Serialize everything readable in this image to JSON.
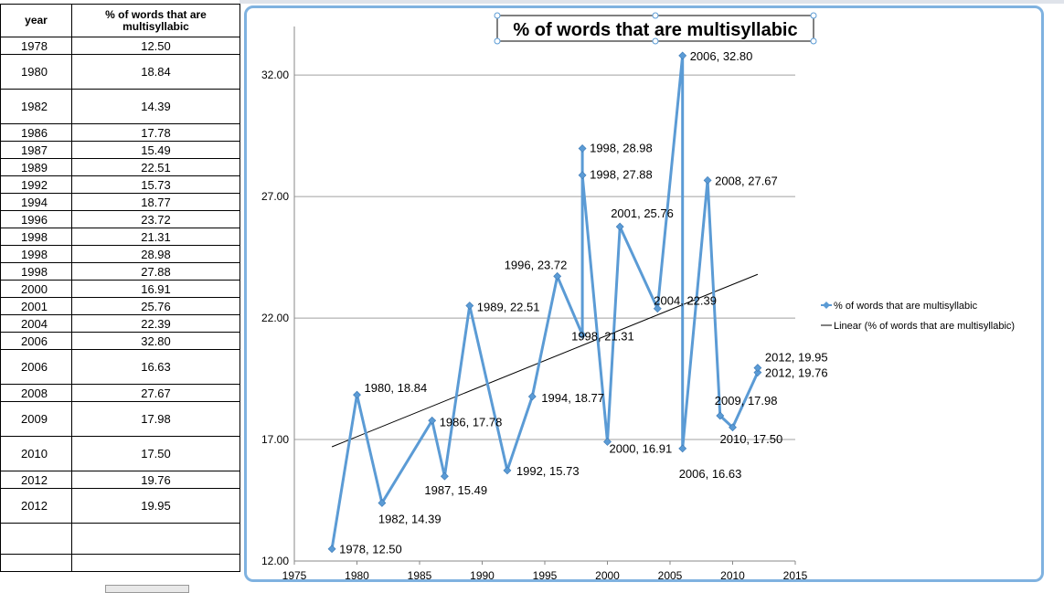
{
  "table": {
    "headers": [
      "year",
      "% of words that are multisyllabic"
    ],
    "rows": [
      [
        "1978",
        "12.50"
      ],
      [
        "1980",
        "18.84"
      ],
      [
        "1982",
        "14.39"
      ],
      [
        "1986",
        "17.78"
      ],
      [
        "1987",
        "15.49"
      ],
      [
        "1989",
        "22.51"
      ],
      [
        "1992",
        "15.73"
      ],
      [
        "1994",
        "18.77"
      ],
      [
        "1996",
        "23.72"
      ],
      [
        "1998",
        "21.31"
      ],
      [
        "1998",
        "28.98"
      ],
      [
        "1998",
        "27.88"
      ],
      [
        "2000",
        "16.91"
      ],
      [
        "2001",
        "25.76"
      ],
      [
        "2004",
        "22.39"
      ],
      [
        "2006",
        "32.80"
      ],
      [
        "2006",
        "16.63"
      ],
      [
        "2008",
        "27.67"
      ],
      [
        "2009",
        "17.98"
      ],
      [
        "2010",
        "17.50"
      ],
      [
        "2012",
        "19.76"
      ],
      [
        "2012",
        "19.95"
      ]
    ]
  },
  "chart_data": {
    "type": "line",
    "title": "% of words that are multisyllabic",
    "xlabel": "",
    "ylabel": "",
    "xlim": [
      1975,
      2015
    ],
    "ylim": [
      12,
      34
    ],
    "x_ticks": [
      "1975",
      "1980",
      "1985",
      "1990",
      "1995",
      "2000",
      "2005",
      "2010",
      "2015"
    ],
    "y_ticks": [
      "12.00",
      "17.00",
      "22.00",
      "27.00",
      "32.00"
    ],
    "grid": "horizontal",
    "legend_position": "right",
    "series": [
      {
        "name": "% of words that are multisyllabic",
        "color": "#5b9bd5",
        "points": [
          [
            1978,
            12.5
          ],
          [
            1980,
            18.84
          ],
          [
            1982,
            14.39
          ],
          [
            1986,
            17.78
          ],
          [
            1987,
            15.49
          ],
          [
            1989,
            22.51
          ],
          [
            1992,
            15.73
          ],
          [
            1994,
            18.77
          ],
          [
            1996,
            23.72
          ],
          [
            1998,
            21.31
          ],
          [
            1998,
            28.98
          ],
          [
            1998,
            27.88
          ],
          [
            2000,
            16.91
          ],
          [
            2001,
            25.76
          ],
          [
            2004,
            22.39
          ],
          [
            2006,
            32.8
          ],
          [
            2006,
            16.63
          ],
          [
            2008,
            27.67
          ],
          [
            2009,
            17.98
          ],
          [
            2010,
            17.5
          ],
          [
            2012,
            19.76
          ],
          [
            2012,
            19.95
          ]
        ],
        "labels": [
          "1978, 12.50",
          "1980, 18.84",
          "1982, 14.39",
          "1986, 17.78",
          "1987, 15.49",
          "1989, 22.51",
          "1992, 15.73",
          "1994, 18.77",
          "1996, 23.72",
          "1998, 21.31",
          "1998, 28.98",
          "1998, 27.88",
          "2000, 16.91",
          "2001, 25.76",
          "2004, 22.39",
          "2006, 32.80",
          "2006, 16.63",
          "2008, 27.67",
          "2009, 17.98",
          "2010, 17.50",
          "2012, 19.76",
          "2012, 19.95"
        ]
      },
      {
        "name": "Linear (% of words that are multisyllabic)",
        "color": "#000000",
        "type": "trendline",
        "points": [
          [
            1978,
            16.7
          ],
          [
            2012,
            23.8
          ]
        ]
      }
    ]
  }
}
